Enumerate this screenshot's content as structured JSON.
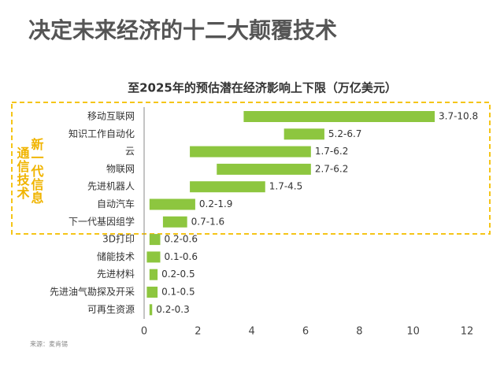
{
  "chart_data": {
    "type": "range_bar",
    "title": "决定未来经济的十二大颠覆技术",
    "subtitle": "至2025年的预估潜在经济影响上下限（万亿美元）",
    "annotation": [
      "新一代信息",
      "通信技术"
    ],
    "source": "来源：麦肯锡",
    "categories": [
      "移动互联网",
      "知识工作自动化",
      "云",
      "物联网",
      "先进机器人",
      "自动汽车",
      "下一代基因组学",
      "3D打印",
      "储能技术",
      "先进材料",
      "先进油气勘探及开采",
      "可再生资源"
    ],
    "low": [
      3.7,
      5.2,
      1.7,
      2.7,
      1.7,
      0.2,
      0.7,
      0.2,
      0.1,
      0.2,
      0.1,
      0.2
    ],
    "high": [
      10.8,
      6.7,
      6.2,
      6.2,
      4.5,
      1.9,
      1.6,
      0.6,
      0.6,
      0.5,
      0.5,
      0.3
    ],
    "value_labels": [
      "3.7-10.8",
      "5.2-6.7",
      "1.7-6.2",
      "2.7-6.2",
      "1.7-4.5",
      "0.2-1.9",
      "0.7-1.6",
      "0.2-0.6",
      "0.1-0.6",
      "0.2-0.5",
      "0.1-0.5",
      "0.2-0.3"
    ],
    "color": "#8dc63f",
    "xlim": [
      0,
      12
    ],
    "xticks": [
      0,
      2,
      4,
      6,
      8,
      10,
      12
    ]
  }
}
